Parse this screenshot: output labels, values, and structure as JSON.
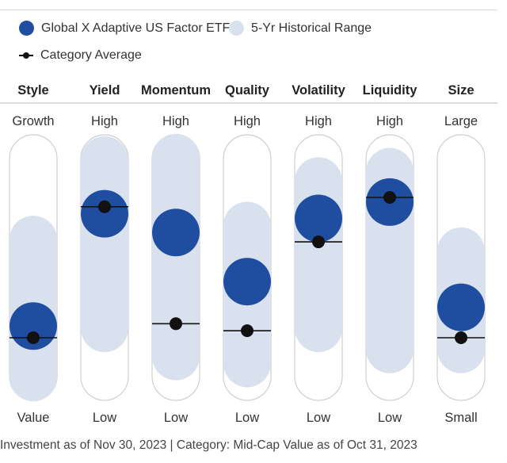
{
  "legend": {
    "fund": "Global X Adaptive US Factor ETF",
    "range": "5-Yr Historical Range",
    "category": "Category Average"
  },
  "colors": {
    "fund": "#1f4ea1",
    "range": "#d9e1ee",
    "track_border": "#cfcfcf",
    "category": "#111111",
    "header_rule": "#d0d0d0"
  },
  "footnote": "Investment as of Nov 30, 2023 | Category: Mid-Cap Value as of Oct 31, 2023",
  "chart_data": {
    "type": "factor-profile",
    "scale_note": "0 = bottom label, 100 = top label",
    "factors": [
      {
        "name": "Style",
        "top_label": "Growth",
        "bottom_label": "Value",
        "fund": 25,
        "category": 20,
        "range": [
          3,
          62
        ]
      },
      {
        "name": "Yield",
        "top_label": "High",
        "bottom_label": "Low",
        "fund": 73,
        "category": 76,
        "range": [
          24,
          96
        ]
      },
      {
        "name": "Momentum",
        "top_label": "High",
        "bottom_label": "Low",
        "fund": 65,
        "category": 26,
        "range": [
          12,
          97
        ]
      },
      {
        "name": "Quality",
        "top_label": "High",
        "bottom_label": "Low",
        "fund": 44,
        "category": 23,
        "range": [
          9,
          68
        ]
      },
      {
        "name": "Volatility",
        "top_label": "High",
        "bottom_label": "Low",
        "fund": 71,
        "category": 61,
        "range": [
          24,
          87
        ]
      },
      {
        "name": "Liquidity",
        "top_label": "High",
        "bottom_label": "Low",
        "fund": 78,
        "category": 80,
        "range": [
          15,
          91
        ]
      },
      {
        "name": "Size",
        "top_label": "Large",
        "bottom_label": "Small",
        "fund": 33,
        "category": 20,
        "range": [
          15,
          57
        ]
      }
    ]
  }
}
